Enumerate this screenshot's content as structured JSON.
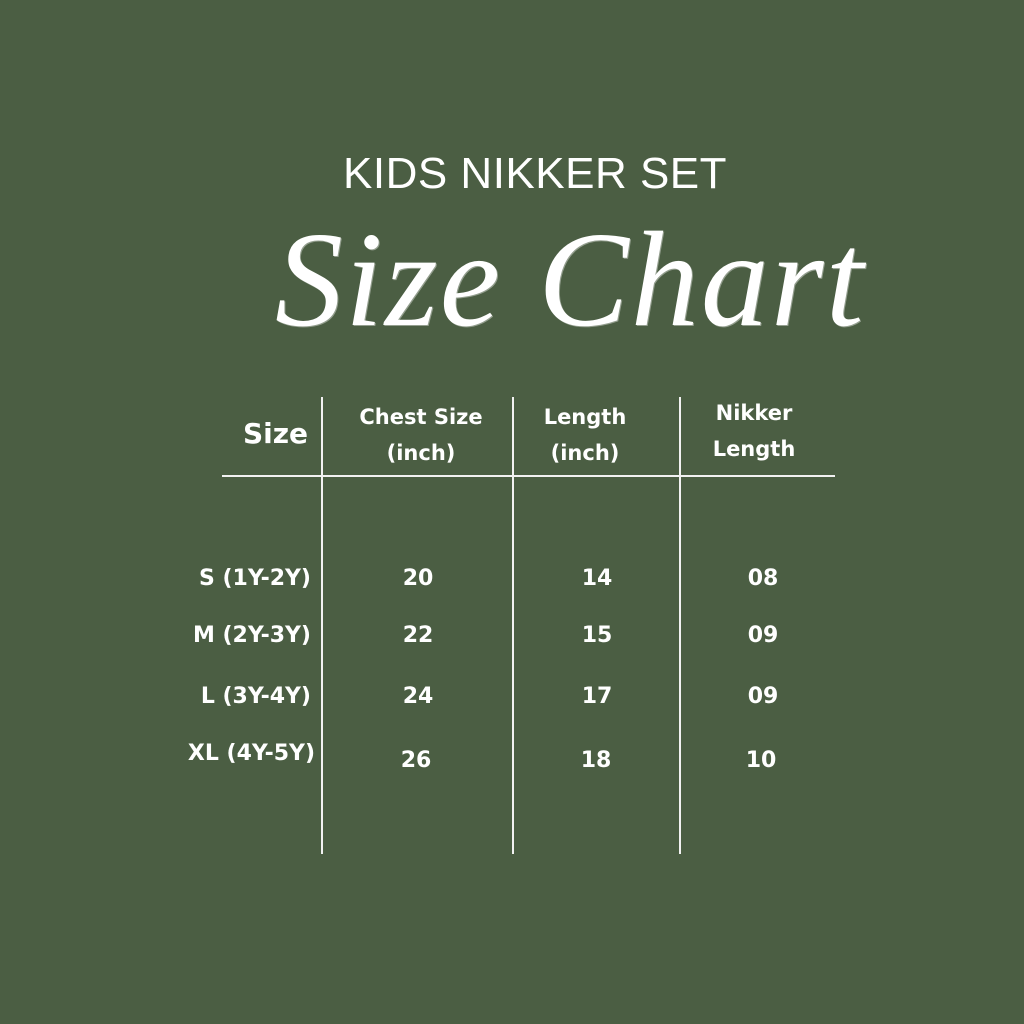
{
  "background_color": "#4b5e43",
  "text_color": "#ffffff",
  "header": {
    "subtitle": "KIDS NIKKER SET",
    "title": "Size Chart"
  },
  "chart_data": {
    "type": "table",
    "columns": [
      {
        "line1": "Size",
        "line2": ""
      },
      {
        "line1": "Chest Size",
        "line2": "(inch)"
      },
      {
        "line1": "Length",
        "line2": "(inch)"
      },
      {
        "line1": "Nikker",
        "line2": "Length"
      }
    ],
    "rows": [
      {
        "size": "S (1Y-2Y)",
        "chest": "20",
        "length": "14",
        "nikker": "08"
      },
      {
        "size": "M (2Y-3Y)",
        "chest": "22",
        "length": "15",
        "nikker": "09"
      },
      {
        "size": "L (3Y-4Y)",
        "chest": "24",
        "length": "17",
        "nikker": "09"
      },
      {
        "size": "XL (4Y-5Y)",
        "chest": "26",
        "length": "18",
        "nikker": "10"
      }
    ]
  }
}
